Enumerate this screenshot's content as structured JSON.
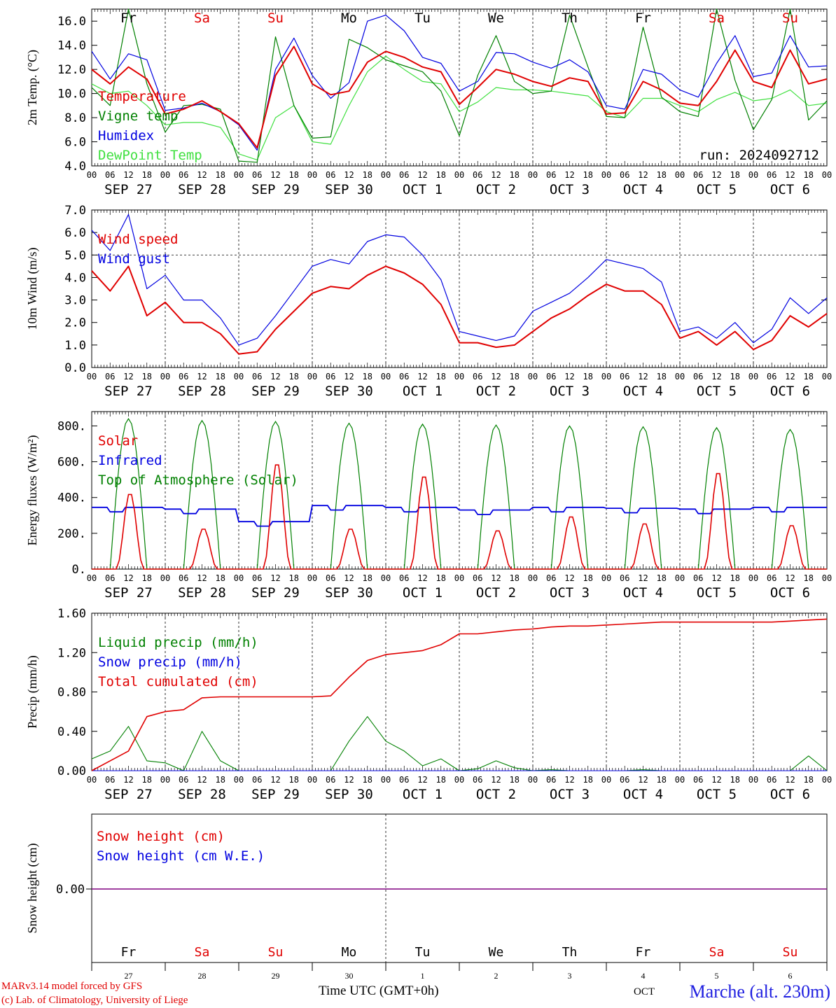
{
  "run_label": "run: 2024092712",
  "footer": {
    "credit_line1": "MARv3.14 model forced by GFS",
    "credit_line2": "(c) Lab. of Climatology, University of Liege",
    "station": "Marche (alt. 230m)",
    "x_title": "Time UTC (GMT+0h)",
    "cut_label": "OCT"
  },
  "hour_ticks": [
    "00",
    "06",
    "12",
    "18"
  ],
  "date_labels": [
    "SEP 27",
    "SEP 28",
    "SEP 29",
    "SEP 30",
    "OCT  1",
    "OCT  2",
    "OCT  3",
    "OCT  4",
    "OCT  5",
    "OCT  6"
  ],
  "day_numbers": [
    "27",
    "28",
    "29",
    "30",
    "1",
    "2",
    "3",
    "4",
    "5",
    "6"
  ],
  "weekdays": [
    {
      "label": "Fr",
      "color": "#000000"
    },
    {
      "label": "Sa",
      "color": "#e00000"
    },
    {
      "label": "Su",
      "color": "#e00000"
    },
    {
      "label": "Mo",
      "color": "#000000"
    },
    {
      "label": "Tu",
      "color": "#000000"
    },
    {
      "label": "We",
      "color": "#000000"
    },
    {
      "label": "Th",
      "color": "#000000"
    },
    {
      "label": "Fr",
      "color": "#000000"
    },
    {
      "label": "Sa",
      "color": "#e00000"
    },
    {
      "label": "Su",
      "color": "#e00000"
    }
  ],
  "chart_data": [
    {
      "type": "line",
      "ylabel": "2m Temp. (°C)",
      "ylim": [
        4.0,
        17.0
      ],
      "yticks": [
        "4.0",
        "6.0",
        "8.0",
        "10.0",
        "12.0",
        "14.0",
        "16.0"
      ],
      "x_unit": "hours since 2024-09-27 00 UTC",
      "x": [
        0,
        6,
        12,
        18,
        24,
        30,
        36,
        42,
        48,
        54,
        60,
        66,
        72,
        78,
        84,
        90,
        96,
        102,
        108,
        114,
        120,
        126,
        132,
        138,
        144,
        150,
        156,
        162,
        168,
        174,
        180,
        186,
        192,
        198,
        204,
        210,
        216,
        222,
        228,
        234,
        240
      ],
      "series": [
        {
          "name": "Temperature",
          "color": "#e00000",
          "values": [
            12.0,
            10.8,
            12.2,
            11.2,
            8.3,
            8.7,
            9.4,
            8.5,
            7.5,
            5.5,
            11.5,
            13.9,
            10.8,
            9.9,
            10.2,
            12.6,
            13.5,
            13.0,
            12.2,
            11.8,
            9.1,
            10.5,
            12.0,
            11.6,
            11.0,
            10.6,
            11.3,
            11.0,
            8.3,
            8.4,
            11.0,
            10.3,
            9.2,
            9.0,
            11.0,
            13.6,
            11.0,
            10.5,
            13.6,
            10.8,
            11.2
          ]
        },
        {
          "name": "Vigne temp",
          "color": "#008000",
          "values": [
            10.5,
            9.0,
            17.0,
            10.8,
            6.8,
            9.0,
            9.1,
            8.7,
            4.4,
            4.3,
            14.7,
            9.0,
            6.3,
            6.4,
            14.5,
            13.8,
            12.8,
            12.3,
            11.8,
            10.2,
            6.5,
            11.5,
            14.8,
            11.0,
            10.0,
            10.2,
            16.5,
            12.2,
            8.1,
            8.0,
            15.5,
            9.7,
            8.5,
            8.1,
            17.0,
            11.1,
            7.0,
            9.5,
            17.0,
            7.8,
            9.4
          ]
        },
        {
          "name": "Humidex",
          "color": "#0000e0",
          "values": [
            13.5,
            11.2,
            13.3,
            12.8,
            8.6,
            8.8,
            9.2,
            8.5,
            7.4,
            5.3,
            12.0,
            14.6,
            11.5,
            9.6,
            10.9,
            16.0,
            16.5,
            15.2,
            13.0,
            12.5,
            10.2,
            11.0,
            13.4,
            13.3,
            12.6,
            12.1,
            12.8,
            11.8,
            9.0,
            8.7,
            12.0,
            11.6,
            10.3,
            9.7,
            12.5,
            14.8,
            11.4,
            11.7,
            14.8,
            12.2,
            12.3
          ]
        },
        {
          "name": "DewPoint Temp",
          "color": "#40e040",
          "values": [
            10.8,
            10.0,
            10.2,
            9.0,
            7.4,
            7.6,
            7.6,
            7.2,
            5.0,
            4.5,
            8.0,
            9.0,
            6.0,
            5.8,
            9.0,
            11.8,
            13.1,
            12.0,
            11.0,
            10.8,
            8.5,
            9.3,
            10.5,
            10.3,
            10.3,
            10.2,
            10.0,
            9.8,
            8.5,
            8.0,
            9.6,
            9.6,
            9.0,
            8.5,
            9.5,
            10.1,
            9.4,
            9.6,
            10.3,
            9.0,
            9.2
          ]
        }
      ]
    },
    {
      "type": "line",
      "ylabel": "10m Wind (m/s)",
      "ylim": [
        0.0,
        7.0
      ],
      "yticks": [
        "0.0",
        "1.0",
        "2.0",
        "3.0",
        "4.0",
        "5.0",
        "6.0",
        "7.0"
      ],
      "reference_line": 5.0,
      "x_unit": "hours since 2024-09-27 00 UTC",
      "x": [
        0,
        6,
        12,
        18,
        24,
        30,
        36,
        42,
        48,
        54,
        60,
        66,
        72,
        78,
        84,
        90,
        96,
        102,
        108,
        114,
        120,
        126,
        132,
        138,
        144,
        150,
        156,
        162,
        168,
        174,
        180,
        186,
        192,
        198,
        204,
        210,
        216,
        222,
        228,
        234,
        240
      ],
      "series": [
        {
          "name": "Wind speed",
          "color": "#e00000",
          "values": [
            4.3,
            3.4,
            4.5,
            2.3,
            2.9,
            2.0,
            2.0,
            1.5,
            0.6,
            0.7,
            1.7,
            2.5,
            3.3,
            3.6,
            3.5,
            4.1,
            4.5,
            4.2,
            3.7,
            2.8,
            1.1,
            1.1,
            0.9,
            1.0,
            1.6,
            2.2,
            2.6,
            3.2,
            3.7,
            3.4,
            3.4,
            2.8,
            1.3,
            1.6,
            1.0,
            1.6,
            0.8,
            1.2,
            2.3,
            1.8,
            2.4
          ]
        },
        {
          "name": "Wind gust",
          "color": "#0000e0",
          "values": [
            6.1,
            5.2,
            6.8,
            3.5,
            4.1,
            3.0,
            3.0,
            2.2,
            1.0,
            1.3,
            2.3,
            3.4,
            4.5,
            4.8,
            4.6,
            5.6,
            5.9,
            5.8,
            5.0,
            3.9,
            1.6,
            1.4,
            1.2,
            1.4,
            2.5,
            2.9,
            3.3,
            4.0,
            4.8,
            4.6,
            4.4,
            3.8,
            1.6,
            1.8,
            1.3,
            2.0,
            1.1,
            1.7,
            3.1,
            2.4,
            3.1
          ]
        }
      ]
    },
    {
      "type": "line",
      "ylabel": "Energy fluxes (W/m²)",
      "ylim": [
        0,
        880
      ],
      "yticks": [
        "0.",
        "200.",
        "400.",
        "600.",
        "800."
      ],
      "x_unit": "hours since 2024-09-27 00 UTC",
      "toa_peaks_by_day": [
        840,
        830,
        825,
        815,
        810,
        805,
        800,
        795,
        790,
        780
      ],
      "solar_peaks_by_day": [
        430,
        230,
        600,
        230,
        530,
        220,
        300,
        260,
        550,
        250
      ],
      "infrared_by_day": [
        345,
        335,
        265,
        355,
        345,
        330,
        345,
        340,
        335,
        345
      ],
      "series": [
        {
          "name": "Solar",
          "color": "#e00000"
        },
        {
          "name": "Infrared",
          "color": "#0000e0"
        },
        {
          "name": "Top of Atmosphere (Solar)",
          "color": "#008000"
        }
      ]
    },
    {
      "type": "line",
      "ylabel": "Precip (mm/h)",
      "ylim": [
        0.0,
        1.6
      ],
      "yticks": [
        "0.00",
        "0.40",
        "0.80",
        "1.20",
        "1.60"
      ],
      "x_unit": "hours since 2024-09-27 00 UTC",
      "x": [
        0,
        6,
        12,
        18,
        24,
        30,
        36,
        42,
        48,
        54,
        60,
        66,
        72,
        78,
        84,
        90,
        96,
        102,
        108,
        114,
        120,
        126,
        132,
        138,
        144,
        150,
        156,
        162,
        168,
        174,
        180,
        186,
        192,
        198,
        204,
        210,
        216,
        222,
        228,
        234,
        240
      ],
      "series": [
        {
          "name": "Liquid precip (mm/h)",
          "color": "#008000",
          "values": [
            0.12,
            0.2,
            0.45,
            0.1,
            0.08,
            0.0,
            0.4,
            0.1,
            0.0,
            0.0,
            0.0,
            0.0,
            0.0,
            0.0,
            0.3,
            0.55,
            0.3,
            0.2,
            0.05,
            0.12,
            0.0,
            0.02,
            0.1,
            0.03,
            0.0,
            0.01,
            0.0,
            0.0,
            0.0,
            0.0,
            0.01,
            0.0,
            0.0,
            0.0,
            0.0,
            0.0,
            0.0,
            0.0,
            0.0,
            0.15,
            0.0
          ]
        },
        {
          "name": "Snow precip (mm/h)",
          "color": "#0000e0",
          "values": [
            0,
            0,
            0,
            0,
            0,
            0,
            0,
            0,
            0,
            0,
            0,
            0,
            0,
            0,
            0,
            0,
            0,
            0,
            0,
            0,
            0,
            0,
            0,
            0,
            0,
            0,
            0,
            0,
            0,
            0,
            0,
            0,
            0,
            0,
            0,
            0,
            0,
            0,
            0,
            0,
            0
          ]
        },
        {
          "name": "Total cumulated (cm)",
          "color": "#e00000",
          "values": [
            0.0,
            0.1,
            0.2,
            0.55,
            0.6,
            0.62,
            0.74,
            0.75,
            0.75,
            0.75,
            0.75,
            0.75,
            0.75,
            0.76,
            0.95,
            1.12,
            1.18,
            1.2,
            1.22,
            1.28,
            1.39,
            1.39,
            1.41,
            1.43,
            1.44,
            1.46,
            1.47,
            1.47,
            1.48,
            1.49,
            1.5,
            1.51,
            1.51,
            1.51,
            1.51,
            1.51,
            1.51,
            1.51,
            1.52,
            1.53,
            1.54
          ]
        }
      ]
    },
    {
      "type": "line",
      "ylabel": "Snow height (cm)",
      "yticks": [
        "0.00"
      ],
      "series": [
        {
          "name": "Snow height (cm)",
          "color": "#e00000",
          "values": [
            0.0,
            0.0
          ]
        },
        {
          "name": "Snow height (cm W.E.)",
          "color": "#0000e0",
          "values": [
            0.0,
            0.0
          ]
        }
      ]
    }
  ]
}
